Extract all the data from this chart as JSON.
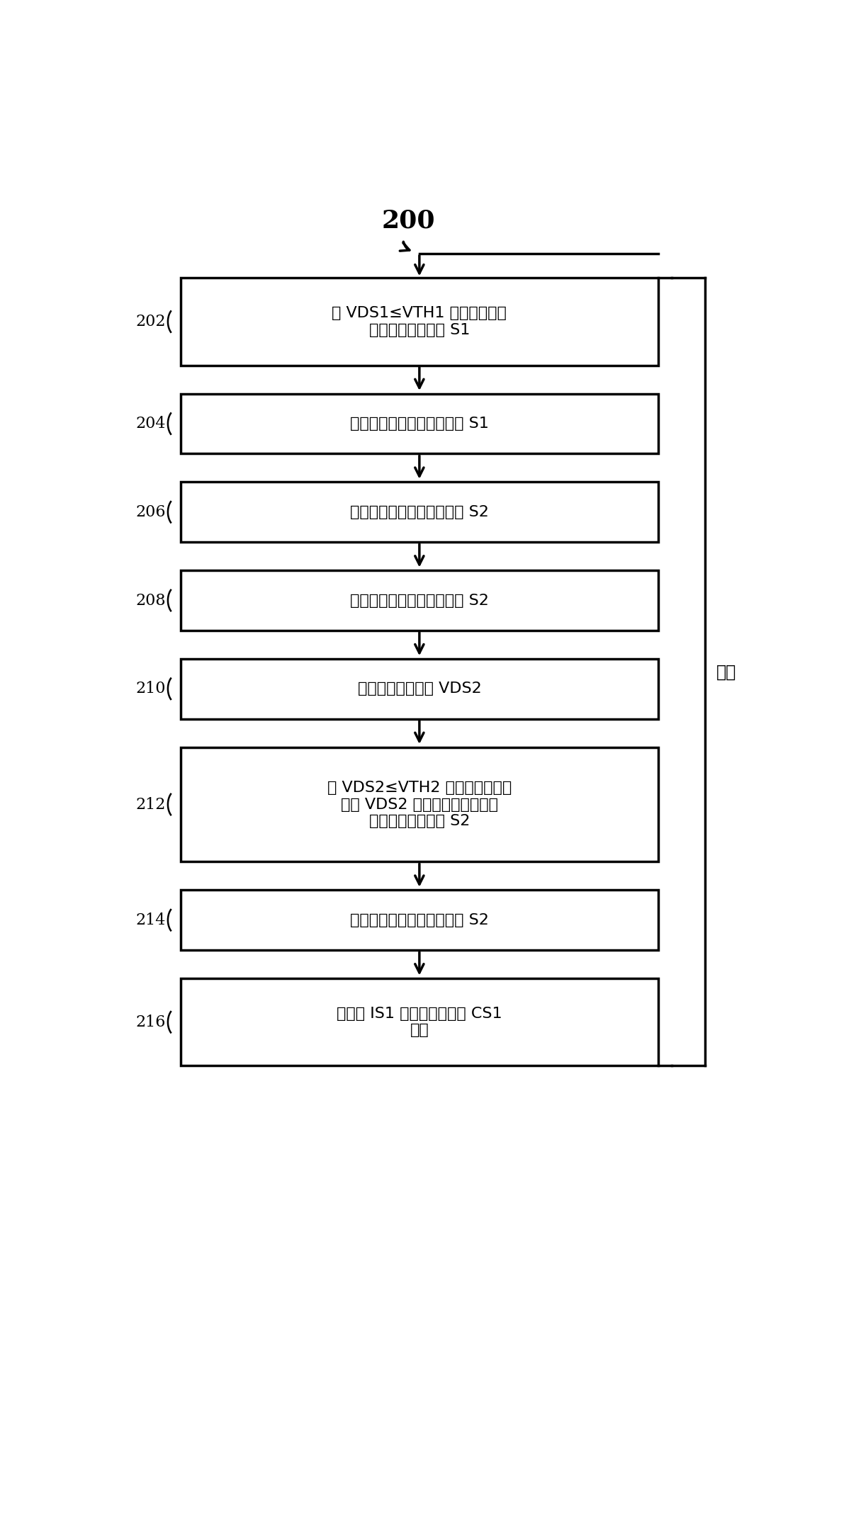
{
  "title_label": "200",
  "bg_color": "#ffffff",
  "box_edge_color": "#000000",
  "arrow_color": "#000000",
  "text_color": "#000000",
  "loop_label": "循环",
  "boxes": [
    {
      "id": "202",
      "label": "当 VDS1≤VTH1 时，第一控制\n电路接通初级开关 S1",
      "lines": 2
    },
    {
      "id": "204",
      "label": "第一控制电路关断初级开关 S1",
      "lines": 1
    },
    {
      "id": "206",
      "label": "第二控制电路接通次级开关 S2",
      "lines": 1
    },
    {
      "id": "208",
      "label": "第二控制电路关断次级开关 S2",
      "lines": 1
    },
    {
      "id": "210",
      "label": "第二控制电路监测 VDS2",
      "lines": 1
    },
    {
      "id": "212",
      "label": "当 VDS2≤VTH2 时，第二控制电\n路在 VDS2 中的特定谷值处或其\n附近接通次级开关 S2",
      "lines": 3
    },
    {
      "id": "214",
      "label": "第二控制电路关断次级开关 S2",
      "lines": 1
    },
    {
      "id": "216",
      "label": "负电流 IS1 使初级开关电容 CS1\n放电",
      "lines": 2
    }
  ]
}
